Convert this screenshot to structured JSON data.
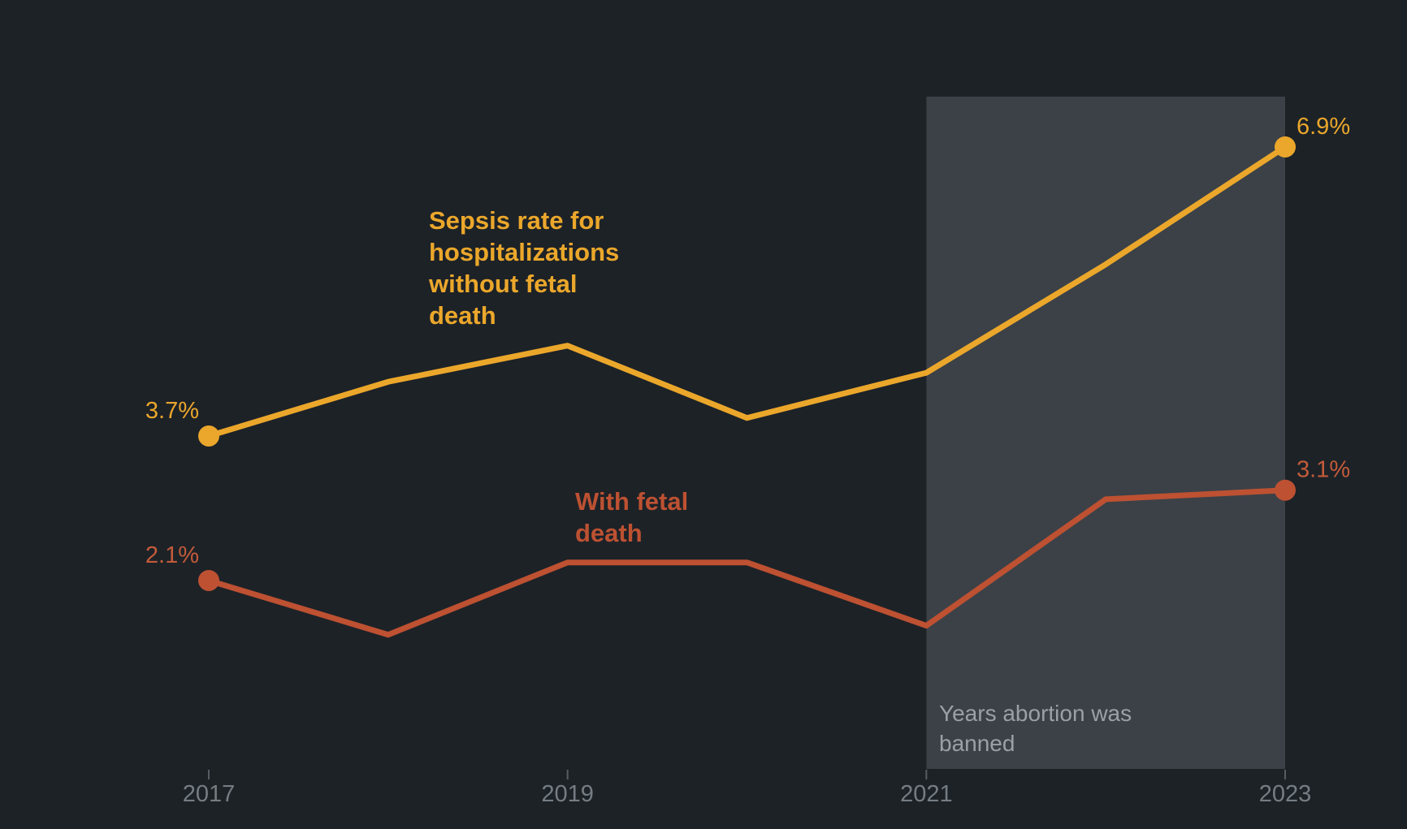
{
  "page": {
    "background": "#1d2227"
  },
  "chart_data": {
    "type": "line",
    "title": "",
    "x": [
      2017,
      2018,
      2019,
      2020,
      2021,
      2022,
      2023
    ],
    "x_axis_ticks": [
      "2017",
      "2019",
      "2021",
      "2023"
    ],
    "ylim": [
      0,
      7.5
    ],
    "y_unit": "percent",
    "grid": false,
    "legend_position": "inline-annotations",
    "series": [
      {
        "name": "Sepsis rate for hospitalizations without fetal death",
        "label_text": "Sepsis rate for\nhospitalizations\nwithout fetal\ndeath",
        "color": "#eba72b",
        "value_label_color": "#eba72b",
        "values": [
          3.7,
          4.3,
          4.7,
          3.9,
          4.4,
          5.6,
          6.9
        ],
        "start_label": "3.7%",
        "end_label": "6.9%"
      },
      {
        "name": "With fetal death",
        "label_text": "With fetal\ndeath",
        "color": "#bd5132",
        "value_label_color": "#c25b3a",
        "values": [
          2.1,
          1.5,
          2.3,
          2.3,
          1.6,
          3.0,
          3.1
        ],
        "start_label": "2.1%",
        "end_label": "3.1%"
      }
    ],
    "highlight_region": {
      "from": 2021,
      "to": 2023,
      "label_text": "Years abortion was\nbanned",
      "fill": "#3b4147",
      "label_color": "#9aa0a5"
    },
    "axis": {
      "tick_color": "#565d63",
      "label_color": "#757d83"
    }
  }
}
